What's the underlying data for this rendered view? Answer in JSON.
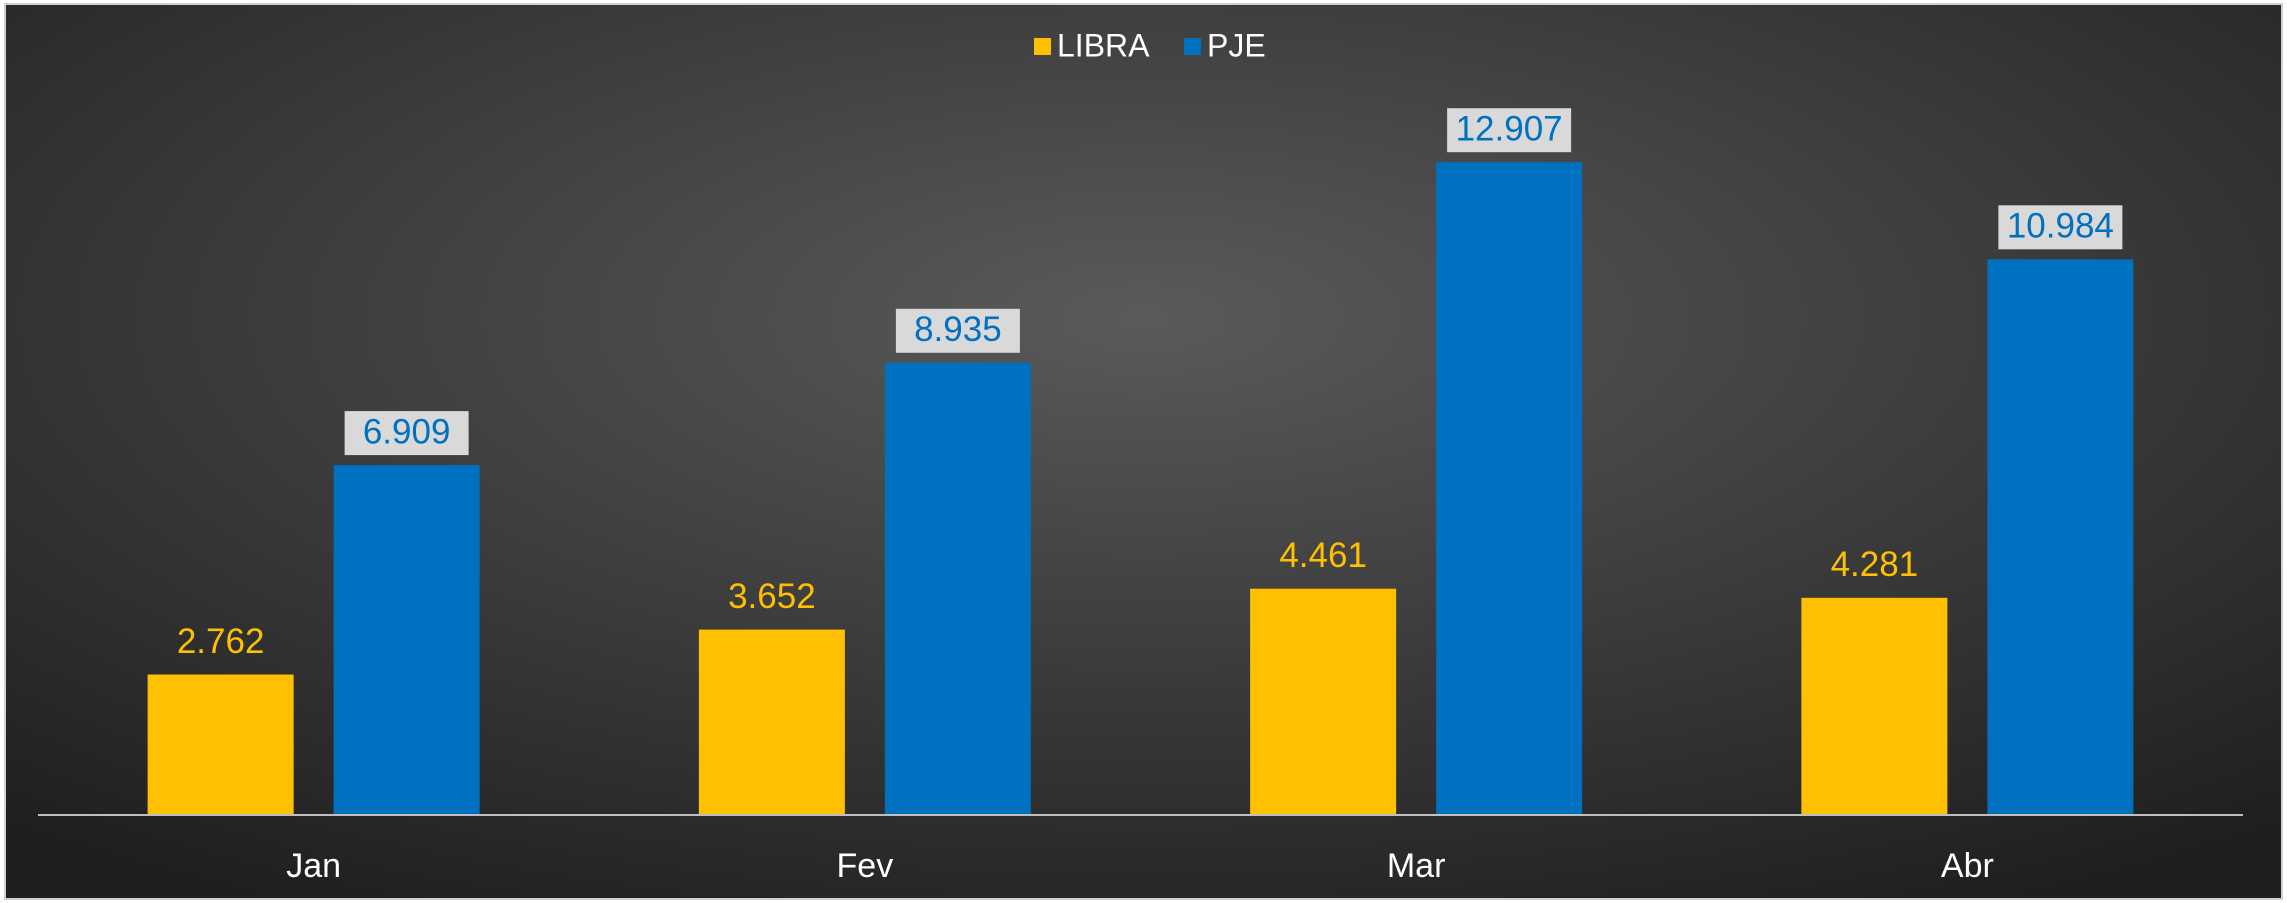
{
  "chart_data": {
    "type": "bar",
    "categories": [
      "Jan",
      "Fev",
      "Mar",
      "Abr"
    ],
    "series": [
      {
        "name": "LIBRA",
        "color": "#ffc000",
        "values": [
          2762,
          3652,
          4461,
          4281
        ],
        "value_labels": [
          "2.762",
          "3.652",
          "4.461",
          "4.281"
        ]
      },
      {
        "name": "PJE",
        "color": "#0070c0",
        "values": [
          6909,
          8935,
          12907,
          10984
        ],
        "value_labels": [
          "6.909",
          "8.935",
          "12.907",
          "10.984"
        ]
      }
    ],
    "legend": "top"
  }
}
